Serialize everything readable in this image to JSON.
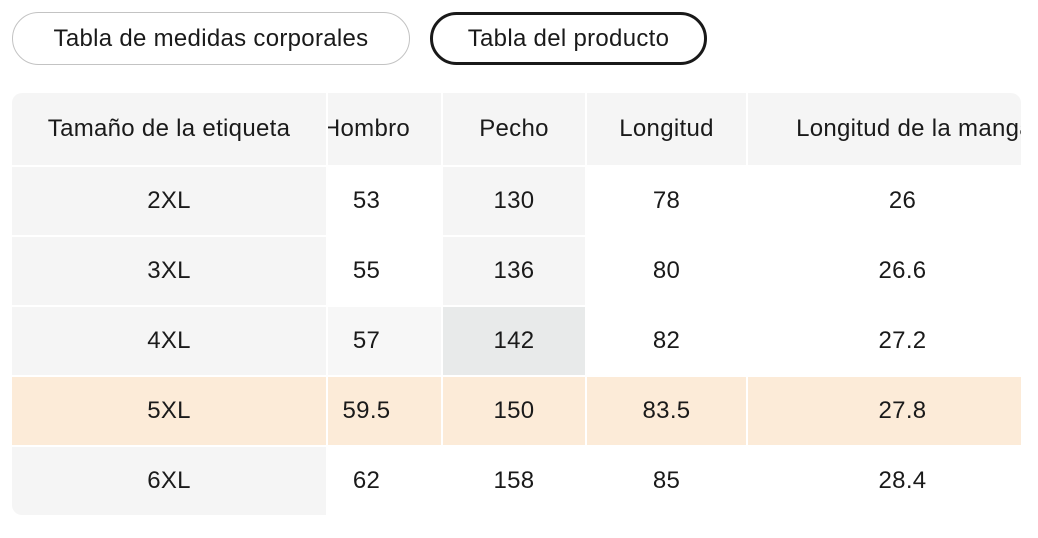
{
  "tabs": {
    "body_chart_label": "Tabla de medidas corporales",
    "product_chart_label": "Tabla del producto",
    "active_tab": "Tabla del producto"
  },
  "table": {
    "columns": [
      "Tamaño de la etiqueta",
      "Hombro",
      "Pecho",
      "Longitud",
      "Longitud de la manga"
    ],
    "rows": [
      {
        "size": "2XL",
        "values": [
          "53",
          "130",
          "78",
          "26"
        ]
      },
      {
        "size": "3XL",
        "values": [
          "55",
          "136",
          "80",
          "26.6"
        ]
      },
      {
        "size": "4XL",
        "values": [
          "57",
          "142",
          "82",
          "27.2"
        ]
      },
      {
        "size": "5XL",
        "values": [
          "59.5",
          "150",
          "83.5",
          "27.8"
        ]
      },
      {
        "size": "6XL",
        "values": [
          "62",
          "158",
          "85",
          "28.4"
        ]
      }
    ],
    "selected_row": "5XL",
    "hovered_cell": {
      "row": "4XL",
      "column": "Pecho",
      "value": "142"
    },
    "colors": {
      "header_bg": "#f5f5f5",
      "label_column_bg": "#f5f5f5",
      "column_trail_bg": "#f5f5f5",
      "row_trail_bg": "#f7f7f7",
      "hovered_cell_bg": "#e8eaea",
      "selected_row_bg": "#fcebd8",
      "active_tab_border": "#191919",
      "inactive_tab_border": "#c3c3c3",
      "text": "#1a1a1a"
    }
  }
}
